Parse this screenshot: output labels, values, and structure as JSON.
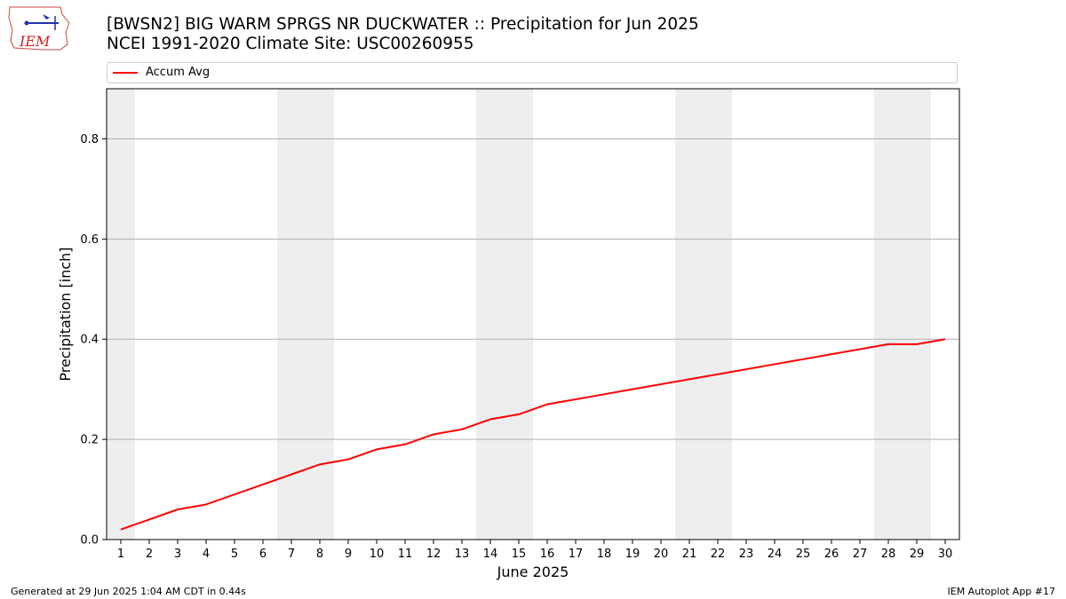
{
  "header": {
    "title_line1": "[BWSN2] BIG WARM SPRGS NR DUCKWATER :: Precipitation for Jun 2025",
    "title_line2": "NCEI 1991-2020 Climate Site: USC00260955",
    "logo_text": "IEM"
  },
  "footer": {
    "left": "Generated at 29 Jun 2025 1:04 AM CDT in 0.44s",
    "right": "IEM Autoplot App #17"
  },
  "colors": {
    "line": "#ff0000",
    "weekend_shade": "#eeeeee",
    "grid": "#b0b0b0",
    "logo": "#cc2222"
  },
  "chart_data": {
    "type": "line",
    "title": "[BWSN2] BIG WARM SPRGS NR DUCKWATER :: Precipitation for Jun 2025",
    "subtitle": "NCEI 1991-2020 Climate Site: USC00260955",
    "xlabel": "June 2025",
    "ylabel": "Precipitation [inch]",
    "x": [
      1,
      2,
      3,
      4,
      5,
      6,
      7,
      8,
      9,
      10,
      11,
      12,
      13,
      14,
      15,
      16,
      17,
      18,
      19,
      20,
      21,
      22,
      23,
      24,
      25,
      26,
      27,
      28,
      29,
      30
    ],
    "xlim": [
      0.5,
      30.5
    ],
    "ylim": [
      0,
      0.9
    ],
    "yticks": [
      0.0,
      0.2,
      0.4,
      0.6,
      0.8
    ],
    "ytick_labels": [
      "0.0",
      "0.2",
      "0.4",
      "0.6",
      "0.8"
    ],
    "series": [
      {
        "name": "Accum Avg",
        "values": [
          0.02,
          0.04,
          0.06,
          0.07,
          0.09,
          0.11,
          0.13,
          0.15,
          0.16,
          0.18,
          0.19,
          0.21,
          0.22,
          0.24,
          0.25,
          0.27,
          0.28,
          0.29,
          0.3,
          0.31,
          0.32,
          0.33,
          0.34,
          0.35,
          0.36,
          0.37,
          0.38,
          0.39,
          0.39,
          0.4
        ]
      }
    ],
    "weekend_days": [
      1,
      7,
      8,
      14,
      15,
      21,
      22,
      28,
      29
    ],
    "grid": "horizontal",
    "legend_position": "top"
  }
}
